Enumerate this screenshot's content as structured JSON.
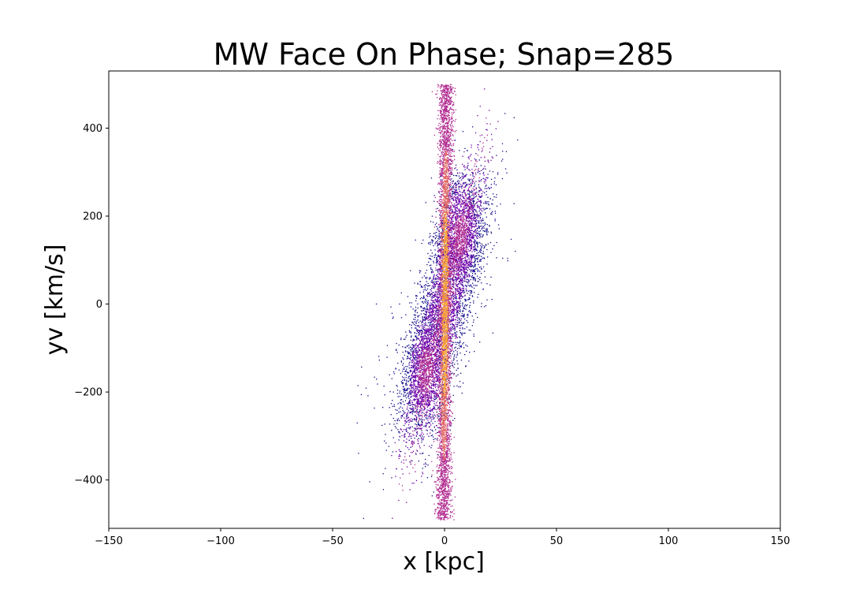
{
  "chart_data": {
    "type": "heatmap",
    "title": "MW Face On Phase; Snap=285",
    "xlabel": "x [kpc]",
    "ylabel": "yv [km/s]",
    "xlim": [
      -150,
      150
    ],
    "ylim": [
      -510,
      530
    ],
    "x_ticks": [
      {
        "value": -150,
        "label": "−150"
      },
      {
        "value": -100,
        "label": "−100"
      },
      {
        "value": -50,
        "label": "−50"
      },
      {
        "value": 0,
        "label": "0"
      },
      {
        "value": 50,
        "label": "50"
      },
      {
        "value": 100,
        "label": "100"
      },
      {
        "value": 150,
        "label": "150"
      }
    ],
    "y_ticks": [
      {
        "value": -400,
        "label": "−400"
      },
      {
        "value": -200,
        "label": "−200"
      },
      {
        "value": 0,
        "label": "0"
      },
      {
        "value": 200,
        "label": "200"
      },
      {
        "value": 400,
        "label": "400"
      }
    ],
    "colormap": [
      "#0d0887",
      "#6a00a8",
      "#b12a90",
      "#e16462",
      "#fca636",
      "#f0f921"
    ],
    "structure": {
      "core_ridge": {
        "x_at_vmax": 0.6,
        "x_at_vmin": -0.6,
        "vmax": 500,
        "vmin": -490,
        "width_kpc": 1.2
      },
      "rotation_lobes": [
        {
          "name": "positive-velocity lobe",
          "x_center": 7,
          "v_center": 160,
          "x_extent": [
            0,
            22
          ],
          "v_extent": [
            40,
            300
          ]
        },
        {
          "name": "negative-velocity lobe",
          "x_center": -9,
          "v_center": -150,
          "x_extent": [
            -25,
            0
          ],
          "v_extent": [
            -300,
            -30
          ]
        }
      ],
      "outliers_x_range": [
        -40,
        32
      ]
    }
  }
}
